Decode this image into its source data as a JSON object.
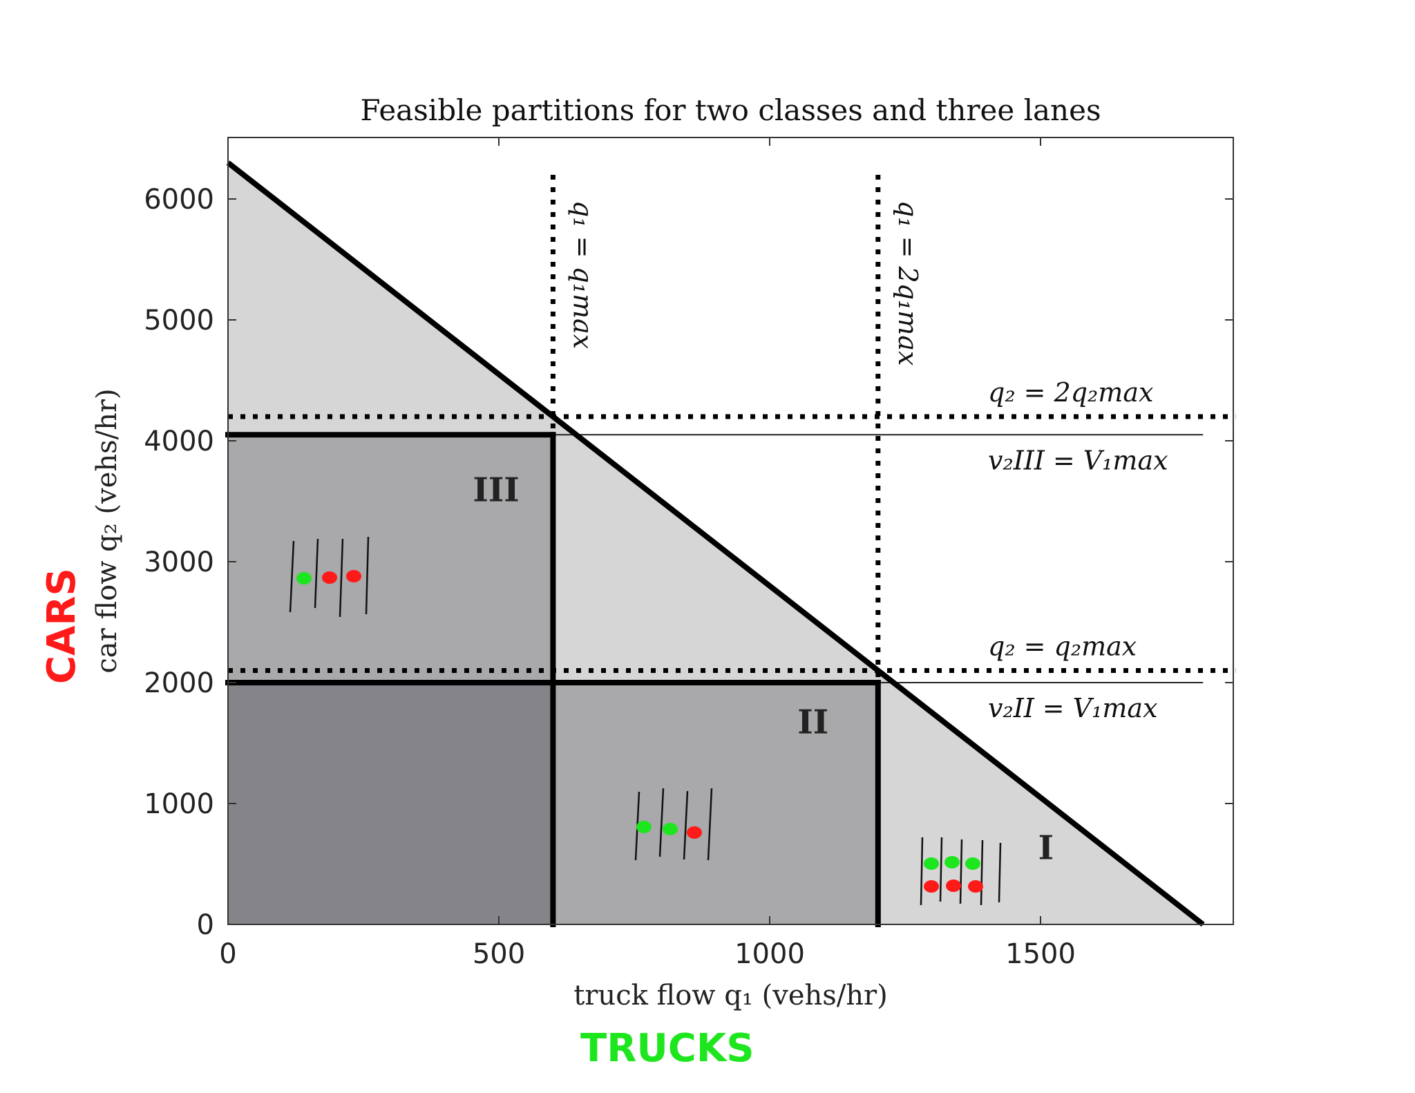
{
  "chart_data": {
    "type": "area",
    "title": "Feasible partitions for two classes and three lanes",
    "xlabel": "truck flow q₁ (vehs/hr)",
    "ylabel": "car flow q₂ (vehs/hr)",
    "xlim": [
      0,
      1860
    ],
    "ylim": [
      0,
      6500
    ],
    "xticks": [
      0,
      500,
      1000,
      1500
    ],
    "yticks": [
      0,
      1000,
      2000,
      3000,
      4000,
      5000,
      6000
    ],
    "feasible_boundary": {
      "x": [
        0,
        1800
      ],
      "y": [
        6300,
        0
      ]
    },
    "regions": [
      {
        "label": "",
        "x": [
          0,
          600
        ],
        "y": [
          0,
          2000
        ],
        "color": "#858488"
      },
      {
        "label": "III",
        "x": [
          0,
          600
        ],
        "y": [
          2000,
          4050
        ],
        "color": "#a9a8ab",
        "label_at": [
          495,
          3500
        ]
      },
      {
        "label": "II",
        "x": [
          600,
          1200
        ],
        "y": [
          0,
          2000
        ],
        "color": "#a9a8ab",
        "label_at": [
          1080,
          1580
        ]
      },
      {
        "label": "I",
        "label_at": [
          1510,
          540
        ],
        "color": "#d6d6d7"
      }
    ],
    "light_region_color": "#d6d6d7",
    "dotted_lines": [
      {
        "orientation": "vertical",
        "value": 600,
        "range": [
          2000,
          6200
        ],
        "label": "q₁ = q₁max"
      },
      {
        "orientation": "vertical",
        "value": 1200,
        "range": [
          2000,
          6200
        ],
        "label": "q₁ = 2q₁max"
      },
      {
        "orientation": "horizontal",
        "value": 4200,
        "range": [
          0,
          1860
        ],
        "label": "q₂ = 2q₂max"
      },
      {
        "orientation": "horizontal",
        "value": 2100,
        "range": [
          0,
          1860
        ],
        "label": "q₂ = q₂max"
      }
    ],
    "thin_lines": [
      {
        "value": 4050,
        "range": [
          600,
          1800
        ],
        "label": "v₂III = V₁max"
      },
      {
        "value": 2000,
        "range": [
          1200,
          1800
        ],
        "label": "v₂II = V₁max"
      }
    ],
    "thick_boundaries": [
      {
        "x": [
          0,
          600
        ],
        "y": [
          4050,
          4050
        ]
      },
      {
        "x": [
          600,
          600
        ],
        "y": [
          0,
          4050
        ]
      },
      {
        "x": [
          0,
          1200
        ],
        "y": [
          2000,
          2000
        ]
      },
      {
        "x": [
          1200,
          1200
        ],
        "y": [
          0,
          2000
        ]
      }
    ]
  },
  "handwritten": {
    "cars_label": "CARS",
    "trucks_label": "TRUCKS",
    "cars_color": "#ff1a1a",
    "trucks_color": "#1ee61e"
  }
}
